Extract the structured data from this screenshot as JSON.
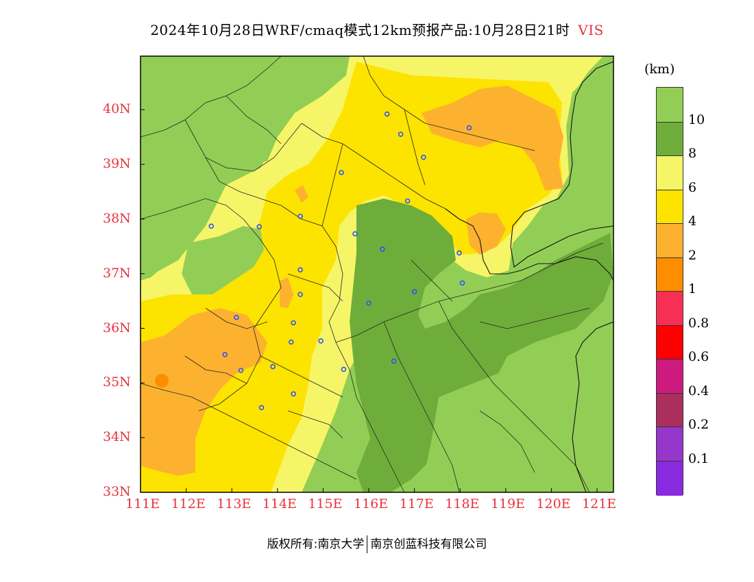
{
  "title": {
    "main": "2024年10月28日WRF/cmaq模式12km预报产品:10月28日21时",
    "variable": "VIS"
  },
  "legend": {
    "unit": "(km)",
    "labels": [
      "10",
      "8",
      "6",
      "4",
      "2",
      "1",
      "0.8",
      "0.6",
      "0.4",
      "0.2",
      "0.1"
    ],
    "colors": [
      "#92ce55",
      "#6fad3a",
      "#f6f568",
      "#fde300",
      "#fcb22f",
      "#fe8d00",
      "#f82f55",
      "#fe0000",
      "#ce1a7f",
      "#aa2f5c",
      "#9637cc",
      "#8a2be2"
    ]
  },
  "map": {
    "longitude_ticks": [
      "111E",
      "112E",
      "113E",
      "114E",
      "115E",
      "116E",
      "117E",
      "118E",
      "119E",
      "120E",
      "121E"
    ],
    "latitude_ticks": [
      "40N",
      "39N",
      "38N",
      "37N",
      "36N",
      "35N",
      "34N",
      "33N"
    ],
    "city_markers": [
      {
        "lon": 115.4,
        "lat": 38.85
      },
      {
        "lon": 116.4,
        "lat": 39.92
      },
      {
        "lon": 116.7,
        "lat": 39.55
      },
      {
        "lon": 117.2,
        "lat": 39.13
      },
      {
        "lon": 118.2,
        "lat": 39.67
      },
      {
        "lon": 116.85,
        "lat": 38.33
      },
      {
        "lon": 112.55,
        "lat": 37.87
      },
      {
        "lon": 113.6,
        "lat": 37.86
      },
      {
        "lon": 114.5,
        "lat": 38.05
      },
      {
        "lon": 115.7,
        "lat": 37.73
      },
      {
        "lon": 116.3,
        "lat": 37.45
      },
      {
        "lon": 117.98,
        "lat": 37.38
      },
      {
        "lon": 118.05,
        "lat": 36.83
      },
      {
        "lon": 114.5,
        "lat": 37.07
      },
      {
        "lon": 114.5,
        "lat": 36.62
      },
      {
        "lon": 117.0,
        "lat": 36.67
      },
      {
        "lon": 116.0,
        "lat": 36.46
      },
      {
        "lon": 113.1,
        "lat": 36.2
      },
      {
        "lon": 114.35,
        "lat": 36.1
      },
      {
        "lon": 114.3,
        "lat": 35.75
      },
      {
        "lon": 114.95,
        "lat": 35.77
      },
      {
        "lon": 112.85,
        "lat": 35.52
      },
      {
        "lon": 113.9,
        "lat": 35.3
      },
      {
        "lon": 113.2,
        "lat": 35.23
      },
      {
        "lon": 115.45,
        "lat": 35.25
      },
      {
        "lon": 116.55,
        "lat": 35.4
      },
      {
        "lon": 114.35,
        "lat": 34.8
      },
      {
        "lon": 113.65,
        "lat": 34.55
      }
    ]
  },
  "footer": {
    "copyright": "版权所有:南京大学",
    "company": "南京创蓝科技有限公司"
  }
}
